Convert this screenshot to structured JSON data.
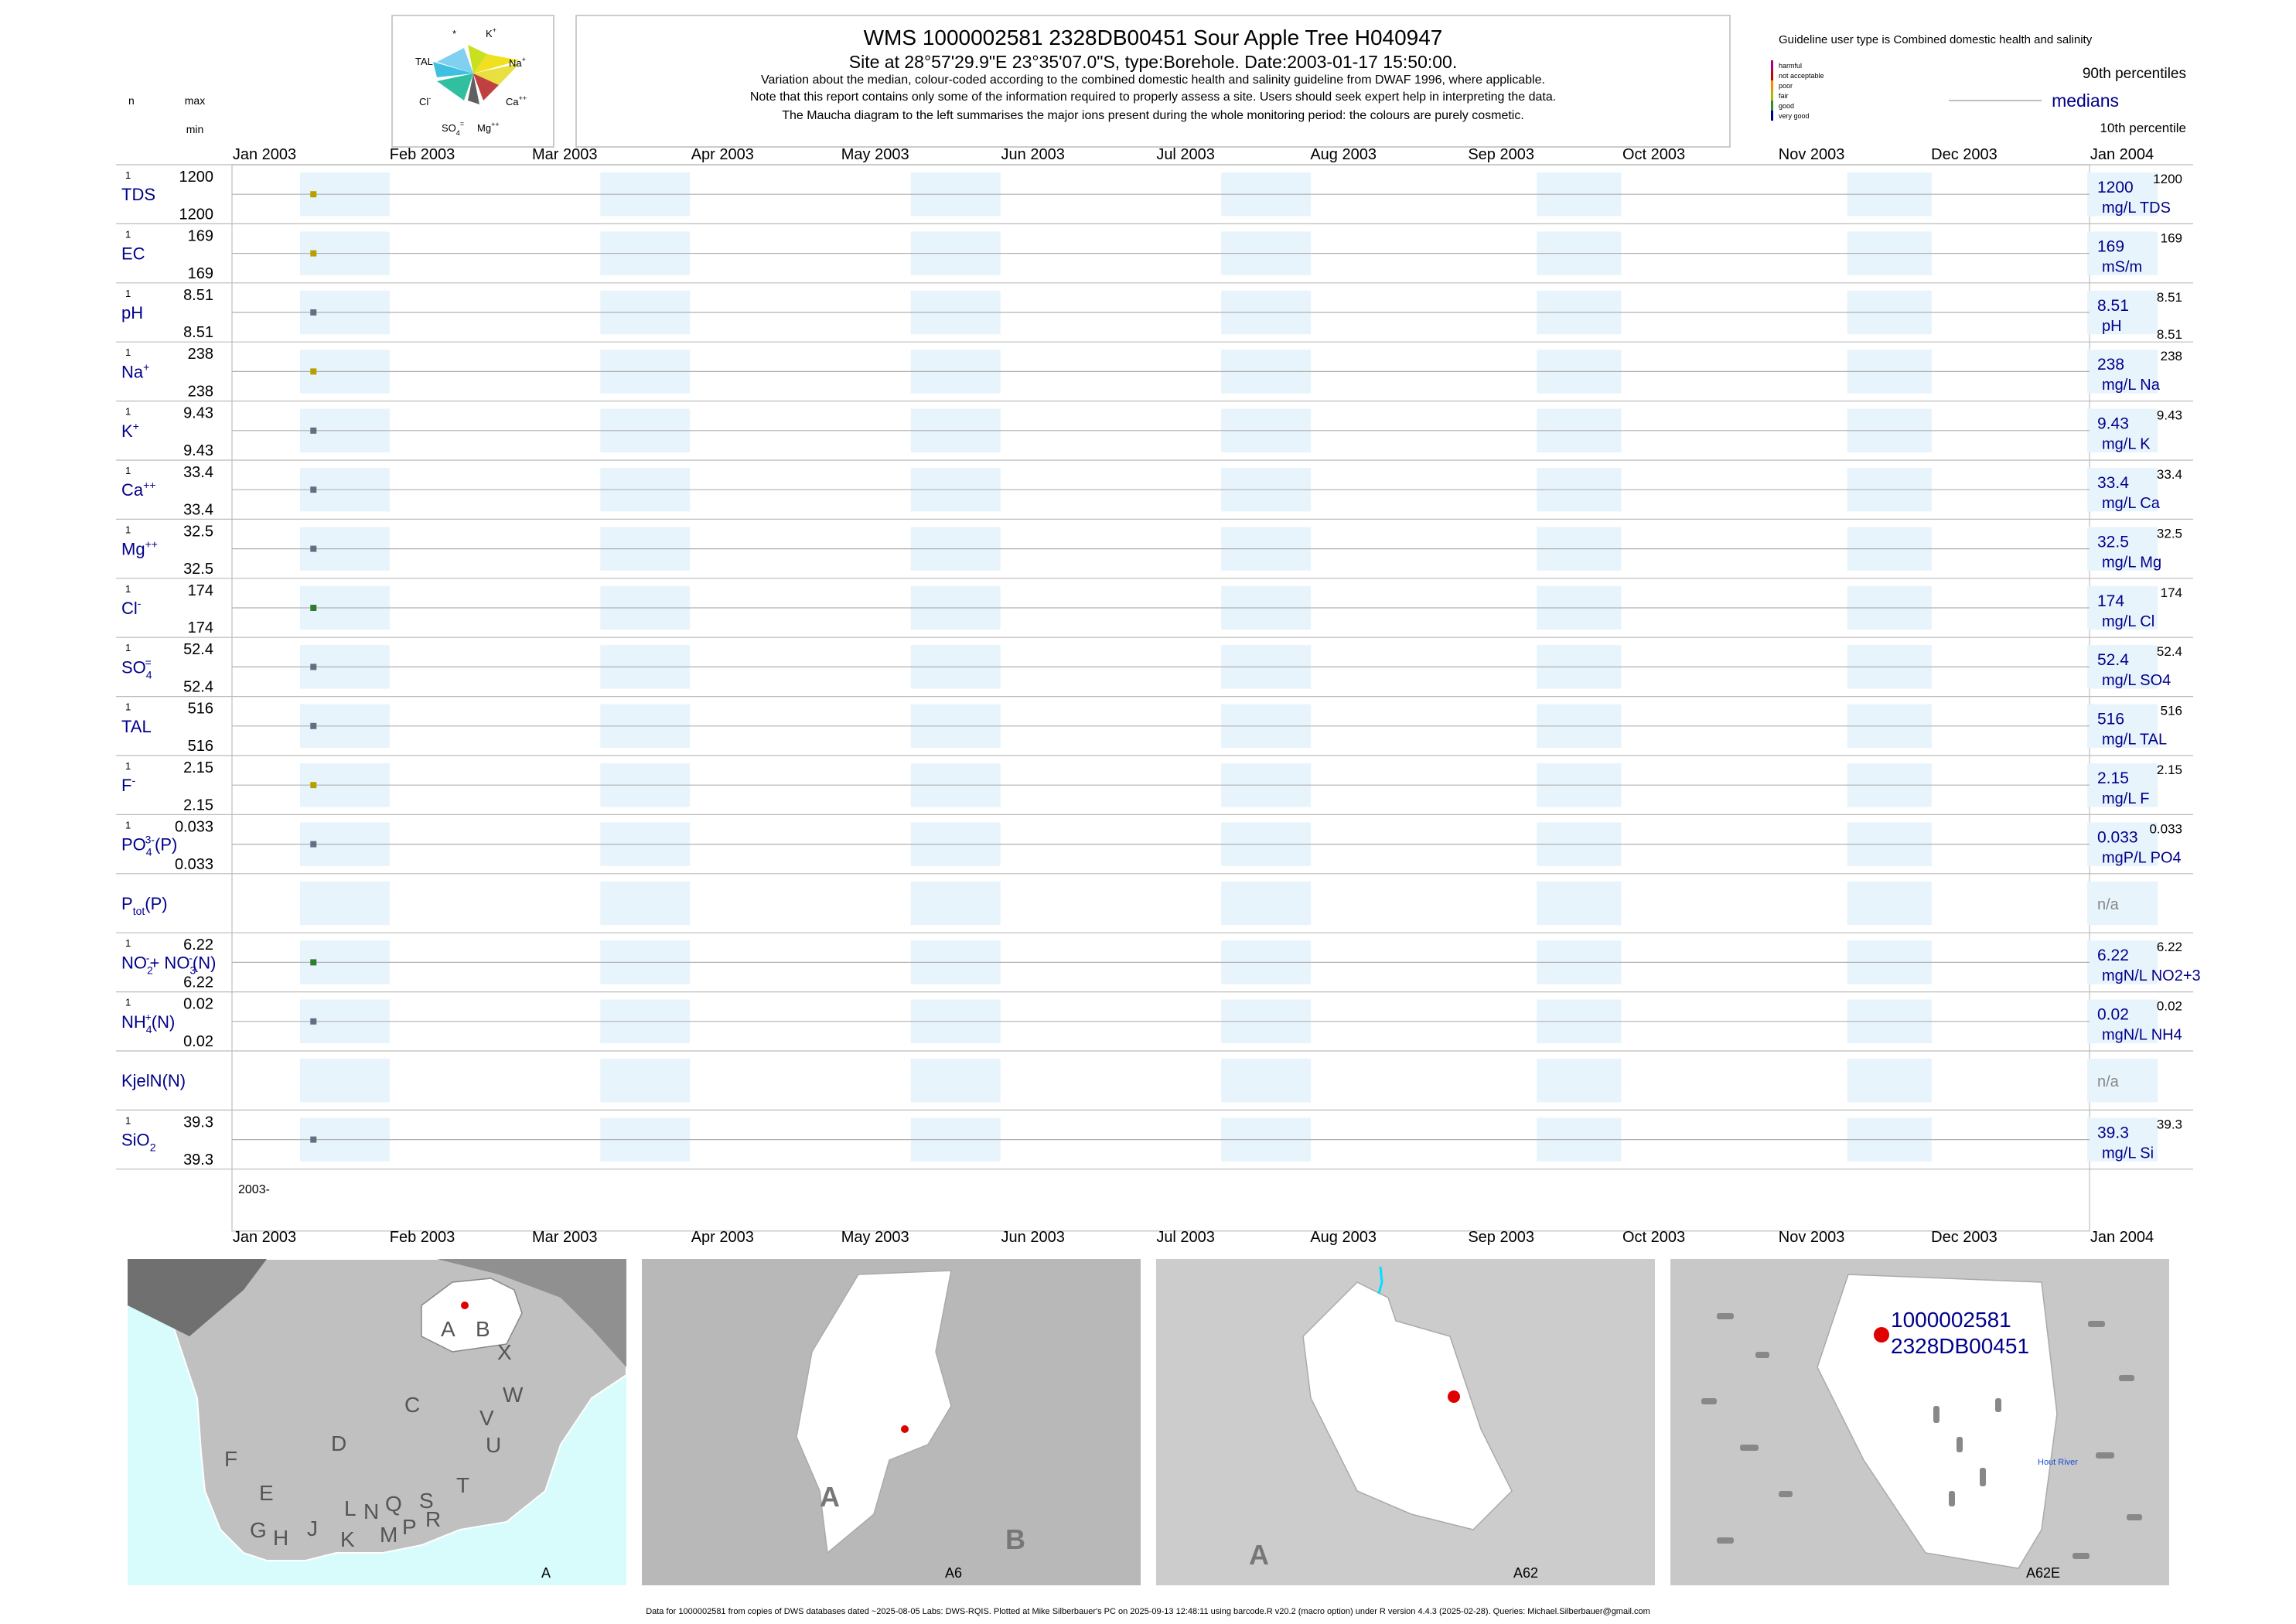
{
  "header": {
    "title": "WMS 1000002581 2328DB00451 Sour Apple Tree H040947",
    "subtitle": "Site at 28°57'29.9\"E 23°35'07.0\"S, type:Borehole. Date:2003-01-17 15:50:00.",
    "note1": "Variation about the median,  colour-coded according to the combined domestic health and salinity guideline from DWAF 1996, where applicable.",
    "note2": "Note that this report contains only some of the information required to properly assess a site. Users should seek expert help in interpreting the data.",
    "note3": "The Maucha diagram to the left summarises the major ions present during the whole monitoring period: the colours are purely cosmetic."
  },
  "legend": {
    "guideline_title": "Guideline user type is Combined domestic health and salinity",
    "levels": [
      {
        "label": "harmful",
        "color": "#aa0077"
      },
      {
        "label": "not acceptable",
        "color": "#cc0000"
      },
      {
        "label": "poor",
        "color": "#ff8800"
      },
      {
        "label": "fair",
        "color": "#b5b500"
      },
      {
        "label": "good",
        "color": "#2e8b2e"
      },
      {
        "label": "very good",
        "color": "#00008b"
      }
    ],
    "p90": "90th percentiles",
    "medians": "medians",
    "p10": "10th percentile"
  },
  "left_headers": {
    "n": "n",
    "max": "max",
    "min": "min"
  },
  "maucha_labels": {
    "top_left": "*",
    "k": "K",
    "tal": "TAL",
    "na": "Na",
    "cl": "Cl",
    "ca": "Ca",
    "so4": "SO",
    "mg": "Mg"
  },
  "chart_data": {
    "type": "scatter",
    "x_axis": {
      "ticks": [
        "Jan 2003",
        "Feb 2003",
        "Mar 2003",
        "Apr 2003",
        "May 2003",
        "Jun 2003",
        "Jul 2003",
        "Aug 2003",
        "Sep 2003",
        "Oct 2003",
        "Nov 2003",
        "Dec 2003",
        "Jan 2004"
      ],
      "year_label": "2003-",
      "range": [
        "2003-01-01",
        "2004-01-01"
      ]
    },
    "sample_date": "2003-01-17",
    "rows": [
      {
        "label": "TDS",
        "n": "1",
        "max": "1200",
        "min": "1200",
        "median": "1200",
        "p90": "1200",
        "p10": "",
        "unit": "mg/L TDS",
        "value": 1200,
        "color": "#b5a000"
      },
      {
        "label": "EC",
        "n": "1",
        "max": "169",
        "min": "169",
        "median": "169",
        "p90": "169",
        "p10": "",
        "unit": "mS/m",
        "value": 169,
        "color": "#b5a000"
      },
      {
        "label": "pH",
        "n": "1",
        "max": "8.51",
        "min": "8.51",
        "median": "8.51",
        "p90": "8.51",
        "p10": "8.51",
        "unit": "pH",
        "value": 8.51,
        "color": "#607080"
      },
      {
        "label": "Na",
        "sup": "+",
        "n": "1",
        "max": "238",
        "min": "238",
        "median": "238",
        "p90": "238",
        "p10": "",
        "unit": "mg/L Na",
        "value": 238,
        "color": "#b5a000"
      },
      {
        "label": "K",
        "sup": "+",
        "n": "1",
        "max": "9.43",
        "min": "9.43",
        "median": "9.43",
        "p90": "9.43",
        "p10": "",
        "unit": "mg/L K",
        "value": 9.43,
        "color": "#607080"
      },
      {
        "label": "Ca",
        "sup": "++",
        "n": "1",
        "max": "33.4",
        "min": "33.4",
        "median": "33.4",
        "p90": "33.4",
        "p10": "",
        "unit": "mg/L Ca",
        "value": 33.4,
        "color": "#607080"
      },
      {
        "label": "Mg",
        "sup": "++",
        "n": "1",
        "max": "32.5",
        "min": "32.5",
        "median": "32.5",
        "p90": "32.5",
        "p10": "",
        "unit": "mg/L Mg",
        "value": 32.5,
        "color": "#607080"
      },
      {
        "label": "Cl",
        "sup": "-",
        "n": "1",
        "max": "174",
        "min": "174",
        "median": "174",
        "p90": "174",
        "p10": "",
        "unit": "mg/L Cl",
        "value": 174,
        "color": "#2e7d32"
      },
      {
        "label": "SO",
        "sub": "4",
        "sup": "=",
        "n": "1",
        "max": "52.4",
        "min": "52.4",
        "median": "52.4",
        "p90": "52.4",
        "p10": "",
        "unit": "mg/L SO4",
        "value": 52.4,
        "color": "#607080"
      },
      {
        "label": "TAL",
        "n": "1",
        "max": "516",
        "min": "516",
        "median": "516",
        "p90": "516",
        "p10": "",
        "unit": "mg/L TAL",
        "value": 516,
        "color": "#607080"
      },
      {
        "label": "F",
        "sup": "-",
        "n": "1",
        "max": "2.15",
        "min": "2.15",
        "median": "2.15",
        "p90": "2.15",
        "p10": "",
        "unit": "mg/L F",
        "value": 2.15,
        "color": "#b5a000"
      },
      {
        "label": "PO",
        "sub": "4",
        "sup": "3-",
        "suffix": "(P)",
        "n": "1",
        "max": "0.033",
        "min": "0.033",
        "median": "0.033",
        "p90": "0.033",
        "p10": "",
        "unit": "mgP/L PO4",
        "value": 0.033,
        "color": "#607080"
      },
      {
        "label": "P",
        "sub": "tot",
        "suffix": "(P)",
        "n": "",
        "max": "",
        "min": "",
        "median": "n/a",
        "p90": "",
        "p10": "",
        "unit": "",
        "value": null,
        "color": ""
      },
      {
        "label": "NO",
        "sub": "2",
        "sup": "-",
        "suffix": "+ NO",
        "sub2": "3",
        "sup2": "-",
        "suffix2": "(N)",
        "n": "1",
        "max": "6.22",
        "min": "6.22",
        "median": "6.22",
        "p90": "6.22",
        "p10": "",
        "unit": "mgN/L NO2+3",
        "value": 6.22,
        "color": "#2e7d32"
      },
      {
        "label": "NH",
        "sub": "4",
        "sup": "+",
        "suffix": "(N)",
        "n": "1",
        "max": "0.02",
        "min": "0.02",
        "median": "0.02",
        "p90": "0.02",
        "p10": "",
        "unit": "mgN/L NH4",
        "value": 0.02,
        "color": "#607080"
      },
      {
        "label": "KjelN(N)",
        "n": "",
        "max": "",
        "min": "",
        "median": "n/a",
        "p90": "",
        "p10": "",
        "unit": "",
        "value": null,
        "color": ""
      },
      {
        "label": "SiO",
        "sub": "2",
        "n": "1",
        "max": "39.3",
        "min": "39.3",
        "median": "39.3",
        "p90": "39.3",
        "p10": "",
        "unit": "mg/L Si",
        "value": 39.3,
        "color": "#607080"
      }
    ]
  },
  "maps": [
    {
      "label": "A",
      "regions": [
        "A",
        "B",
        "X",
        "W",
        "C",
        "V",
        "D",
        "U",
        "T",
        "F",
        "E",
        "L",
        "N",
        "Q",
        "S",
        "R",
        "G",
        "H",
        "J",
        "K",
        "M",
        "P"
      ]
    },
    {
      "label": "A6",
      "regions": [
        "A",
        "B"
      ]
    },
    {
      "label": "A62",
      "regions": [
        "A"
      ]
    },
    {
      "label": "A62E",
      "site_id": "1000002581",
      "site_code": "2328DB00451",
      "river": "Hout River"
    }
  ],
  "footer": "Data for 1000002581 from copies of DWS databases dated ~2025-08-05 Labs: DWS-RQIS. Plotted at Mike Silberbauer's PC on 2025-09-13 12:48:11 using barcode.R v20.2 (macro option) under R version 4.4.3 (2025-02-28). Queries: Michael.Silberbauer@gmail.com"
}
